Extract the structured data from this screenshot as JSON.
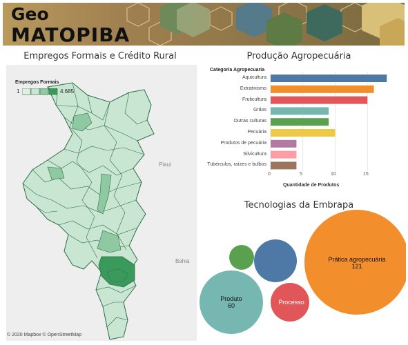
{
  "header": {
    "title_line1": "Geo",
    "title_line2": "MATOPIBA"
  },
  "map_panel": {
    "title": "Empregos Formais e Crédito Rural",
    "legend_title": "Empregos Formais",
    "legend_min": "1",
    "legend_max": "4.685",
    "state_labels": {
      "piaui": "Piauí",
      "bahia": "Bahia"
    },
    "attribution": "© 2020 Mapbox  © OpenStreetMap",
    "colors": {
      "light": "#c9e6d3",
      "mid": "#8fc9a1",
      "dark": "#3a9a5b",
      "border": "#2e6b46"
    }
  },
  "production_panel": {
    "title": "Produção Agropecuária",
    "header": "Categoria Agropecuaria",
    "xlabel": "Quantidade de Produtos",
    "ticks": [
      "0",
      "5",
      "10",
      "15"
    ]
  },
  "chart_data": {
    "type": "bar",
    "orientation": "horizontal",
    "categories": [
      "Aquicultura",
      "Extrativismo",
      "Fruticultura",
      "Grãos",
      "Outras culturas",
      "Pecuária",
      "Produtos de pecuária",
      "Silvicultura",
      "Tubérculos, raízes e bulbos"
    ],
    "values": [
      18,
      16,
      15,
      9,
      9,
      10,
      4,
      4,
      4
    ],
    "colors": [
      "#4e79a7",
      "#f28e2b",
      "#e15759",
      "#76b7b2",
      "#59a14f",
      "#edc948",
      "#b07aa1",
      "#ff9da7",
      "#9c755f"
    ],
    "xlabel": "Quantidade de Produtos",
    "xlim": [
      0,
      19
    ],
    "grid": true
  },
  "bubbles": {
    "title": "Tecnologias da Embrapa",
    "items": [
      {
        "name": "Prática agropecuária",
        "value": "121",
        "color": "#f28e2b"
      },
      {
        "name": "Produto",
        "value": "60",
        "color": "#76b7b2"
      },
      {
        "name": "Processo",
        "value": "",
        "color": "#e15759"
      },
      {
        "name": "",
        "value": "",
        "color": "#4e79a7"
      },
      {
        "name": "",
        "value": "",
        "color": "#59a14f"
      }
    ]
  }
}
